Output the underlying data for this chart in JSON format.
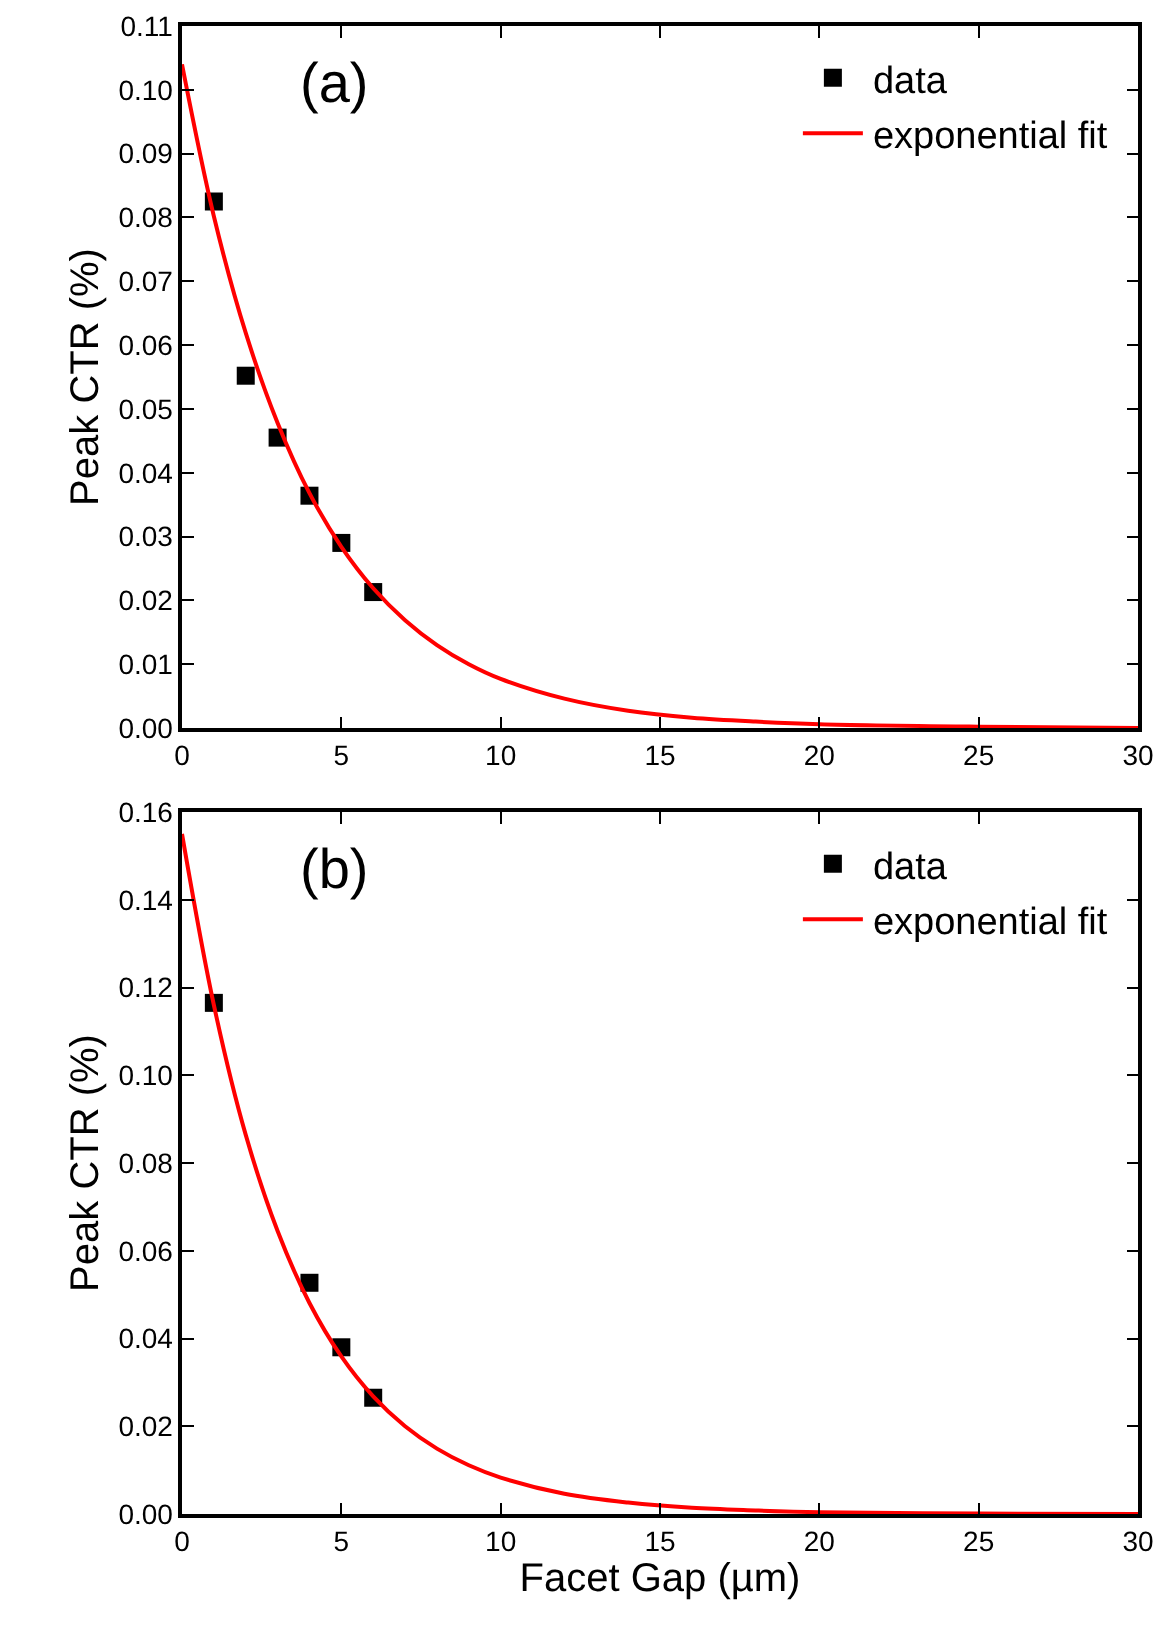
{
  "chart_data": [
    {
      "type": "scatter",
      "ylabel": "Peak CTR (%)",
      "annotations": [
        "(a)"
      ],
      "legend": "top right",
      "xlim": [
        0,
        30
      ],
      "xticks": [
        0,
        5,
        10,
        15,
        20,
        25,
        30
      ],
      "ylim": [
        0,
        0.11
      ],
      "yticks": [
        {
          "value": 0,
          "label": "0.00"
        },
        {
          "value": 0.01,
          "label": "0.01"
        },
        {
          "value": 0.02,
          "label": "0.02"
        },
        {
          "value": 0.03,
          "label": "0.03"
        },
        {
          "value": 0.04,
          "label": "0.04"
        },
        {
          "value": 0.05,
          "label": "0.05"
        },
        {
          "value": 0.06,
          "label": "0.06"
        },
        {
          "value": 0.07,
          "label": "0.07"
        },
        {
          "value": 0.08,
          "label": "0.08"
        },
        {
          "value": 0.09,
          "label": "0.09"
        },
        {
          "value": 0.1,
          "label": "0.10"
        },
        {
          "value": 0.11,
          "label": "0.11"
        }
      ],
      "series": [
        {
          "name": "data",
          "marker": "square",
          "color": "#000000",
          "x": [
            1,
            2,
            3,
            4,
            5,
            6
          ],
          "values": [
            0.0825,
            0.0552,
            0.0455,
            0.0364,
            0.029,
            0.0213
          ]
        },
        {
          "name": "exponential fit",
          "type": "line",
          "marker": "none",
          "line_style": "solid",
          "color": "#ff0000",
          "x": [
            0,
            1,
            2,
            3,
            4,
            5,
            6,
            7,
            8,
            9,
            10,
            12,
            14,
            16,
            18,
            20,
            25,
            30
          ],
          "values": [
            0.104,
            0.0802,
            0.0619,
            0.0478,
            0.0368,
            0.0284,
            0.0219,
            0.0169,
            0.013,
            0.01,
            0.0077,
            0.0046,
            0.0027,
            0.0016,
            0.001,
            0.0006,
            0.0002,
            0.0
          ]
        }
      ]
    },
    {
      "type": "scatter",
      "xlabel": "Facet Gap (µm)",
      "ylabel": "Peak CTR (%)",
      "annotations": [
        "(b)"
      ],
      "legend": "top right",
      "xlim": [
        0,
        30
      ],
      "xticks": [
        0,
        5,
        10,
        15,
        20,
        25,
        30
      ],
      "ylim": [
        0,
        0.16
      ],
      "yticks": [
        {
          "value": 0,
          "label": "0.00"
        },
        {
          "value": 0.02,
          "label": "0.02"
        },
        {
          "value": 0.04,
          "label": "0.04"
        },
        {
          "value": 0.06,
          "label": "0.06"
        },
        {
          "value": 0.08,
          "label": "0.08"
        },
        {
          "value": 0.1,
          "label": "0.10"
        },
        {
          "value": 0.12,
          "label": "0.12"
        },
        {
          "value": 0.14,
          "label": "0.14"
        },
        {
          "value": 0.16,
          "label": "0.16"
        }
      ],
      "series": [
        {
          "name": "data",
          "marker": "square",
          "color": "#000000",
          "x": [
            1,
            4,
            5,
            6
          ],
          "values": [
            0.1165,
            0.0527,
            0.038,
            0.0265
          ]
        },
        {
          "name": "exponential fit",
          "type": "line",
          "marker": "none",
          "line_style": "solid",
          "color": "#ff0000",
          "x": [
            0,
            1,
            2,
            3,
            4,
            5,
            6,
            7,
            8,
            9,
            10,
            12,
            14,
            16,
            18,
            20,
            25,
            30
          ],
          "values": [
            0.155,
            0.116,
            0.0864,
            0.0645,
            0.0481,
            0.0359,
            0.0268,
            0.02,
            0.0149,
            0.0111,
            0.0083,
            0.0046,
            0.0026,
            0.0014,
            0.0008,
            0.0004,
            0.0001,
            0.0
          ]
        }
      ]
    }
  ]
}
